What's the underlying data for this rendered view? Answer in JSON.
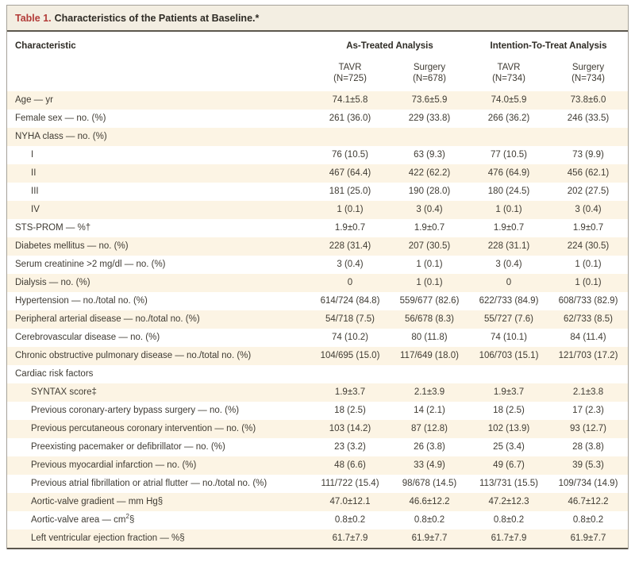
{
  "colors": {
    "accent_red": "#b23b38",
    "row_shade": "#fcf4e4",
    "title_bar_bg": "#f3eee2"
  },
  "table": {
    "title_label": "Table 1.",
    "title_text": "Characteristics of the Patients at Baseline.*",
    "header": {
      "characteristic": "Characteristic",
      "group1": "As-Treated Analysis",
      "group2": "Intention-To-Treat Analysis",
      "subheaders": [
        {
          "line1": "TAVR",
          "line2": "(N=725)"
        },
        {
          "line1": "Surgery",
          "line2": "(N=678)"
        },
        {
          "line1": "TAVR",
          "line2": "(N=734)"
        },
        {
          "line1": "Surgery",
          "line2": "(N=734)"
        }
      ]
    },
    "rows": [
      {
        "label": "Age — yr",
        "indent": 0,
        "shaded": true,
        "values": [
          "74.1±5.8",
          "73.6±5.9",
          "74.0±5.9",
          "73.8±6.0"
        ]
      },
      {
        "label": "Female sex — no. (%)",
        "indent": 0,
        "shaded": false,
        "values": [
          "261 (36.0)",
          "229 (33.8)",
          "266 (36.2)",
          "246 (33.5)"
        ]
      },
      {
        "label": "NYHA class — no. (%)",
        "indent": 0,
        "shaded": true,
        "values": [
          "",
          "",
          "",
          ""
        ]
      },
      {
        "label": "I",
        "indent": 1,
        "shaded": false,
        "values": [
          "76 (10.5)",
          "63 (9.3)",
          "77 (10.5)",
          "73 (9.9)"
        ]
      },
      {
        "label": "II",
        "indent": 1,
        "shaded": true,
        "values": [
          "467 (64.4)",
          "422 (62.2)",
          "476 (64.9)",
          "456 (62.1)"
        ]
      },
      {
        "label": "III",
        "indent": 1,
        "shaded": false,
        "values": [
          "181 (25.0)",
          "190 (28.0)",
          "180 (24.5)",
          "202 (27.5)"
        ]
      },
      {
        "label": "IV",
        "indent": 1,
        "shaded": true,
        "values": [
          "1 (0.1)",
          "3 (0.4)",
          "1 (0.1)",
          "3 (0.4)"
        ]
      },
      {
        "label": "STS-PROM — %†",
        "indent": 0,
        "shaded": false,
        "values": [
          "1.9±0.7",
          "1.9±0.7",
          "1.9±0.7",
          "1.9±0.7"
        ]
      },
      {
        "label": "Diabetes mellitus — no. (%)",
        "indent": 0,
        "shaded": true,
        "values": [
          "228 (31.4)",
          "207 (30.5)",
          "228 (31.1)",
          "224 (30.5)"
        ]
      },
      {
        "label": "Serum creatinine >2 mg/dl — no. (%)",
        "indent": 0,
        "shaded": false,
        "values": [
          "3 (0.4)",
          "1 (0.1)",
          "3 (0.4)",
          "1 (0.1)"
        ]
      },
      {
        "label": "Dialysis — no. (%)",
        "indent": 0,
        "shaded": true,
        "values": [
          "0",
          "1 (0.1)",
          "0",
          "1 (0.1)"
        ]
      },
      {
        "label": "Hypertension — no./total no. (%)",
        "indent": 0,
        "shaded": false,
        "values": [
          "614/724 (84.8)",
          "559/677 (82.6)",
          "622/733 (84.9)",
          "608/733 (82.9)"
        ]
      },
      {
        "label": "Peripheral arterial disease — no./total no. (%)",
        "indent": 0,
        "shaded": true,
        "values": [
          "54/718 (7.5)",
          "56/678 (8.3)",
          "55/727 (7.6)",
          "62/733 (8.5)"
        ]
      },
      {
        "label": "Cerebrovascular disease — no. (%)",
        "indent": 0,
        "shaded": false,
        "values": [
          "74 (10.2)",
          "80 (11.8)",
          "74 (10.1)",
          "84 (11.4)"
        ]
      },
      {
        "label": "Chronic obstructive pulmonary disease — no./total no. (%)",
        "indent": 0,
        "shaded": true,
        "values": [
          "104/695 (15.0)",
          "117/649 (18.0)",
          "106/703 (15.1)",
          "121/703 (17.2)"
        ]
      },
      {
        "label": "Cardiac risk factors",
        "indent": 0,
        "shaded": false,
        "values": [
          "",
          "",
          "",
          ""
        ]
      },
      {
        "label": "SYNTAX score‡",
        "indent": 1,
        "shaded": true,
        "values": [
          "1.9±3.7",
          "2.1±3.9",
          "1.9±3.7",
          "2.1±3.8"
        ]
      },
      {
        "label": "Previous coronary-artery bypass surgery — no. (%)",
        "indent": 1,
        "shaded": false,
        "values": [
          "18 (2.5)",
          "14 (2.1)",
          "18 (2.5)",
          "17 (2.3)"
        ]
      },
      {
        "label": "Previous percutaneous coronary intervention — no. (%)",
        "indent": 1,
        "shaded": true,
        "values": [
          "103 (14.2)",
          "87 (12.8)",
          "102 (13.9)",
          "93 (12.7)"
        ]
      },
      {
        "label": "Preexisting pacemaker or defibrillator — no. (%)",
        "indent": 1,
        "shaded": false,
        "values": [
          "23 (3.2)",
          "26 (3.8)",
          "25 (3.4)",
          "28 (3.8)"
        ]
      },
      {
        "label": "Previous myocardial infarction — no. (%)",
        "indent": 1,
        "shaded": true,
        "values": [
          "48 (6.6)",
          "33 (4.9)",
          "49 (6.7)",
          "39 (5.3)"
        ]
      },
      {
        "label": "Previous atrial fibrillation or atrial flutter — no./total no. (%)",
        "indent": 1,
        "shaded": false,
        "values": [
          "111/722 (15.4)",
          "98/678 (14.5)",
          "113/731 (15.5)",
          "109/734 (14.9)"
        ],
        "two_line": true
      },
      {
        "label": "Aortic-valve gradient — mm Hg§",
        "indent": 1,
        "shaded": true,
        "values": [
          "47.0±12.1",
          "46.6±12.2",
          "47.2±12.3",
          "46.7±12.2"
        ]
      },
      {
        "label": "Aortic-valve area — cm²§",
        "indent": 1,
        "shaded": false,
        "values": [
          "0.8±0.2",
          "0.8±0.2",
          "0.8±0.2",
          "0.8±0.2"
        ],
        "superscript": {
          "text": "Aortic-valve area — cm",
          "sup": "2",
          "after": "§"
        }
      },
      {
        "label": "Left ventricular ejection fraction — %§",
        "indent": 1,
        "shaded": true,
        "values": [
          "61.7±7.9",
          "61.9±7.7",
          "61.7±7.9",
          "61.9±7.7"
        ]
      }
    ]
  }
}
